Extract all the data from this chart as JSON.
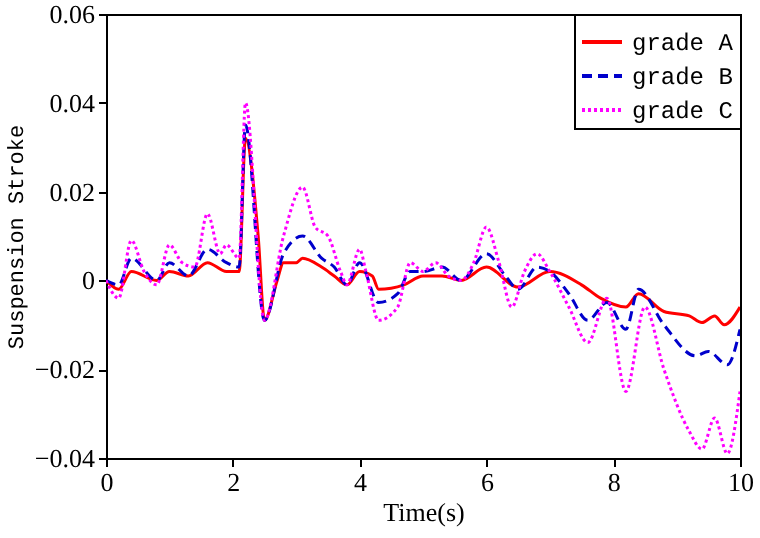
{
  "chart_data": {
    "type": "line",
    "xlabel": "Time(s)",
    "ylabel": "Suspension Stroke",
    "xlim": [
      0,
      10
    ],
    "xticks": [
      0,
      2,
      4,
      6,
      8,
      10
    ],
    "ylim": [
      -0.04,
      0.06
    ],
    "yticks": [
      -0.04,
      -0.02,
      0,
      0.02,
      0.04,
      0.06
    ],
    "grid": false,
    "legend": "top right",
    "series": [
      {
        "name": "grade A",
        "color": "#ff0000",
        "line_style": "solid",
        "x": [
          0,
          0.2,
          0.4,
          0.8,
          1.0,
          1.3,
          1.6,
          1.9,
          2.1,
          2.2,
          2.4,
          2.5,
          2.7,
          2.8,
          3.0,
          3.1,
          3.4,
          3.6,
          3.8,
          4.0,
          4.2,
          4.3,
          4.7,
          5.0,
          5.3,
          5.6,
          6.0,
          6.5,
          7.0,
          7.5,
          7.8,
          8.2,
          8.4,
          8.8,
          9.2,
          9.4,
          9.6,
          9.75,
          10
        ],
        "values": [
          0,
          -0.002,
          0.002,
          0,
          0.002,
          0.001,
          0.004,
          0.002,
          0.002,
          0.032,
          0.01,
          -0.009,
          0,
          0.004,
          0.004,
          0.005,
          0.003,
          0.001,
          -0.001,
          0.002,
          0.001,
          -0.002,
          -0.001,
          0.001,
          0.001,
          0,
          0.003,
          -0.0015,
          0.002,
          -0.001,
          -0.004,
          -0.006,
          -0.003,
          -0.007,
          -0.008,
          -0.0095,
          -0.008,
          -0.01,
          -0.006
        ]
      },
      {
        "name": "grade B",
        "color": "#0000cc",
        "line_style": "dashed",
        "x": [
          0,
          0.2,
          0.4,
          0.8,
          1.0,
          1.3,
          1.6,
          1.9,
          2.1,
          2.2,
          2.5,
          2.8,
          3.1,
          3.4,
          3.6,
          3.8,
          4.0,
          4.3,
          4.6,
          4.8,
          5.0,
          5.3,
          5.6,
          6.0,
          6.3,
          6.5,
          6.8,
          7.0,
          7.3,
          7.6,
          7.9,
          8.2,
          8.4,
          8.8,
          9.3,
          9.5,
          9.8,
          10
        ],
        "values": [
          0,
          -0.001,
          0.005,
          0,
          0.004,
          0.001,
          0.007,
          0.004,
          0.003,
          0.035,
          -0.009,
          0.006,
          0.01,
          0.005,
          0.003,
          -0.001,
          0.004,
          -0.005,
          -0.003,
          0.002,
          0.002,
          0.003,
          0,
          0.006,
          0.001,
          -0.002,
          0.003,
          0.002,
          -0.003,
          -0.009,
          -0.005,
          -0.011,
          -0.002,
          -0.01,
          -0.017,
          -0.016,
          -0.019,
          -0.011
        ]
      },
      {
        "name": "grade C",
        "color": "#ff00ff",
        "line_style": "dotted",
        "x": [
          0,
          0.2,
          0.4,
          0.6,
          0.8,
          1.0,
          1.2,
          1.4,
          1.6,
          1.8,
          1.9,
          2.1,
          2.2,
          2.5,
          2.8,
          3.1,
          3.3,
          3.5,
          3.7,
          3.8,
          4.0,
          4.1,
          4.3,
          4.6,
          4.8,
          5.0,
          5.2,
          5.4,
          5.6,
          5.8,
          6.0,
          6.2,
          6.4,
          6.6,
          6.8,
          7.0,
          7.3,
          7.6,
          7.9,
          8.2,
          8.5,
          8.8,
          9.2,
          9.4,
          9.6,
          9.8,
          10
        ],
        "values": [
          0,
          -0.004,
          0.009,
          0.002,
          -0.001,
          0.008,
          0.004,
          0.003,
          0.015,
          0.006,
          0.008,
          0.005,
          0.04,
          -0.009,
          0.01,
          0.021,
          0.012,
          0.01,
          0.002,
          -0.001,
          0.007,
          0.002,
          -0.009,
          -0.006,
          0.004,
          0.002,
          0.004,
          0.001,
          0,
          0.004,
          0.012,
          0.004,
          -0.006,
          0.002,
          0.006,
          0.002,
          -0.006,
          -0.014,
          -0.004,
          -0.025,
          -0.006,
          -0.02,
          -0.034,
          -0.038,
          -0.031,
          -0.039,
          -0.025
        ]
      }
    ]
  }
}
